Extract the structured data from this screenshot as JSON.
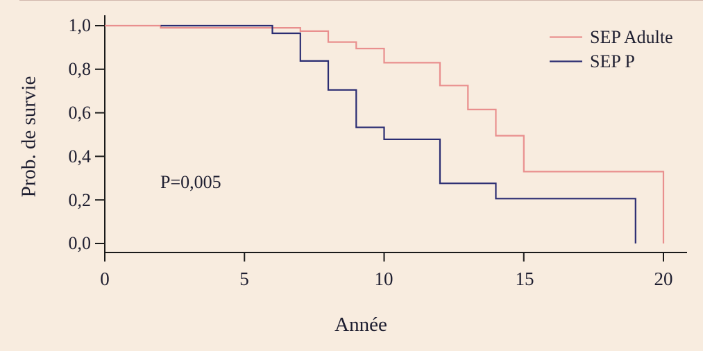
{
  "colors": {
    "background": "#f8ecdf",
    "axis": "#1a1a1a",
    "text": "#1e1e30",
    "hairline": "#8a5a50"
  },
  "chart_data": {
    "type": "line",
    "subtype": "kaplan-meier-step-survival",
    "title": "",
    "xlabel": "Année",
    "ylabel": "Prob. de survie",
    "annotation": "P=0,005",
    "grid": false,
    "legend_position": "top-right",
    "xlim": [
      0,
      20.8
    ],
    "ylim": [
      0.0,
      1.0
    ],
    "x_ticks": [
      0,
      5,
      10,
      15,
      20
    ],
    "x_tick_labels": [
      "0",
      "5",
      "10",
      "15",
      "20"
    ],
    "y_ticks": [
      1.0,
      0.8,
      0.6,
      0.4,
      0.2,
      0.0
    ],
    "y_tick_labels": [
      "1,0",
      "0,8",
      "0,6",
      "0,4",
      "0,2",
      "0,0"
    ],
    "series": [
      {
        "name": "SEP Adulte",
        "color": "#e98f8e",
        "points": [
          [
            0,
            1.0
          ],
          [
            2,
            0.99
          ],
          [
            7,
            0.975
          ],
          [
            8,
            0.925
          ],
          [
            9,
            0.895
          ],
          [
            10,
            0.83
          ],
          [
            12,
            0.725
          ],
          [
            13,
            0.615
          ],
          [
            14,
            0.495
          ],
          [
            15,
            0.33
          ],
          [
            20,
            0.0
          ]
        ]
      },
      {
        "name": "SEP P",
        "color": "#2b2d72",
        "points": [
          [
            2,
            1.0
          ],
          [
            6,
            0.965
          ],
          [
            7,
            0.838
          ],
          [
            8,
            0.705
          ],
          [
            9,
            0.533
          ],
          [
            10,
            0.478
          ],
          [
            12,
            0.276
          ],
          [
            14,
            0.206
          ],
          [
            19,
            0.0
          ]
        ]
      }
    ]
  }
}
